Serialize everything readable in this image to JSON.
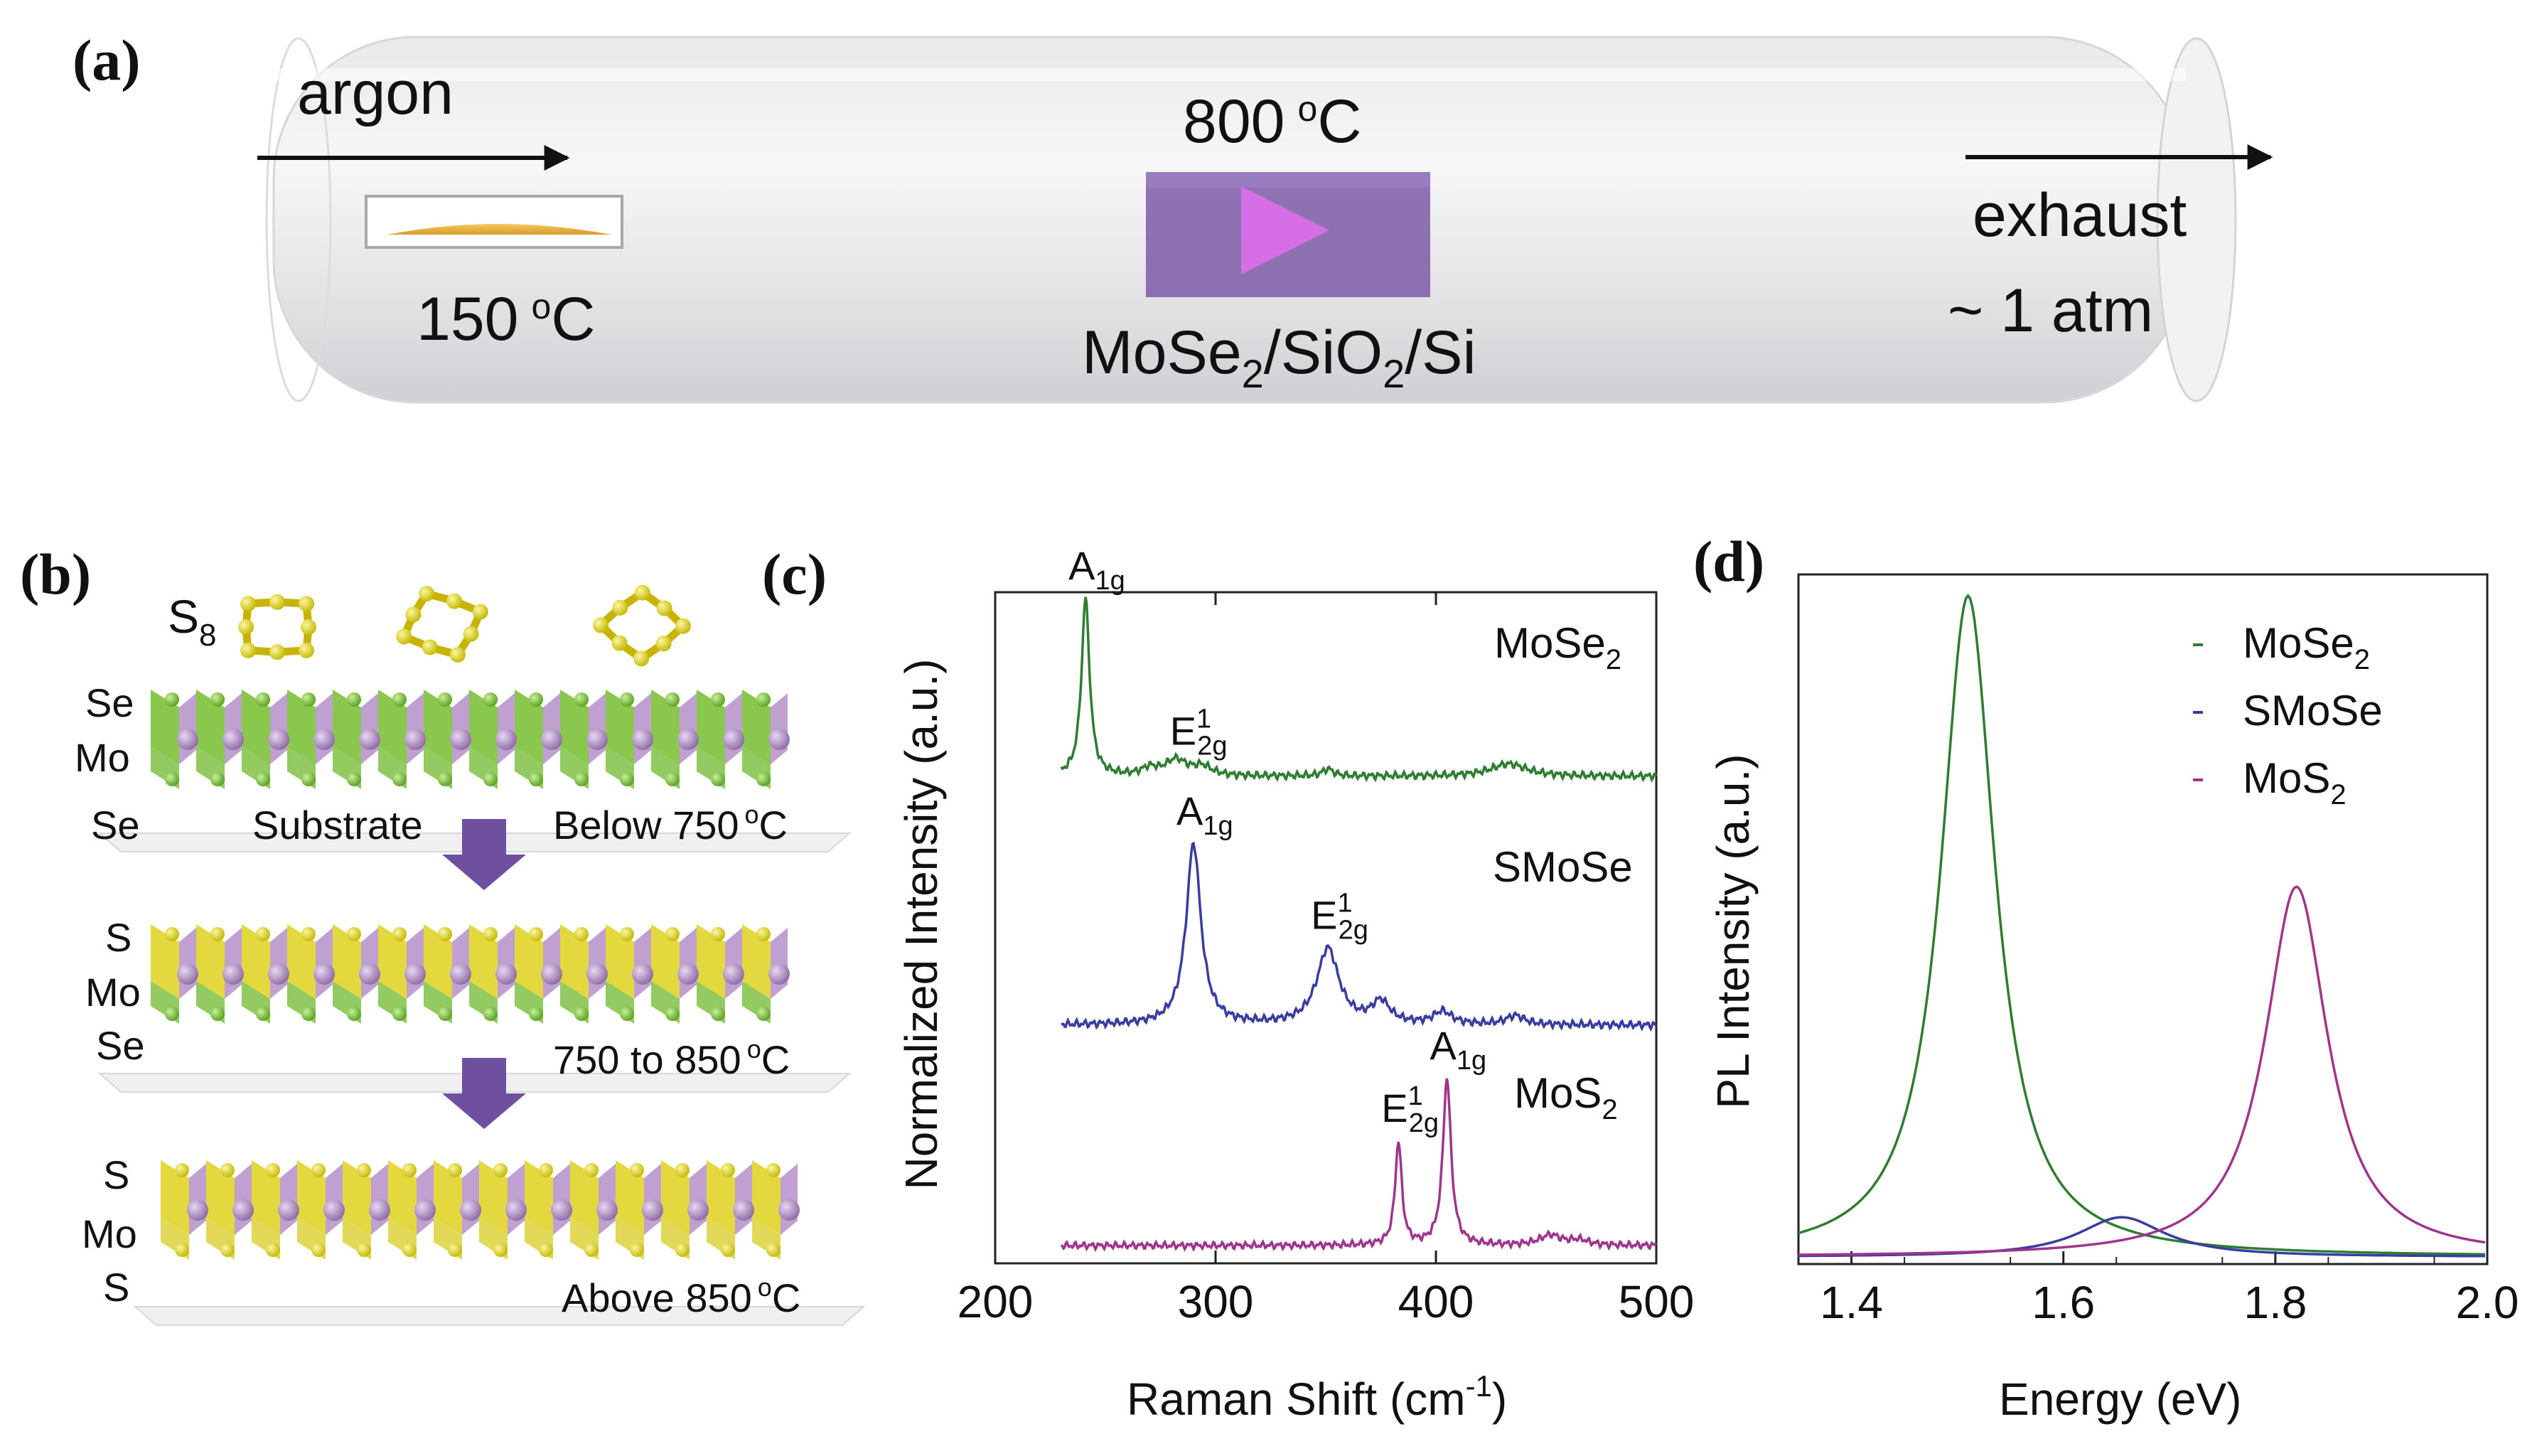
{
  "panel_a": {
    "label": "(a)",
    "argon": "argon",
    "hot_temp": "800",
    "hot_unit": "C",
    "cold_temp": "150",
    "cold_unit": "C",
    "degree": "o",
    "substrate": {
      "p1": "MoSe",
      "s1": "2",
      "p2": "/SiO",
      "s2": "2",
      "p3": "/Si"
    },
    "exhaust": "exhaust",
    "pressure": "~ 1 atm"
  },
  "panel_b": {
    "label": "(b)",
    "s8": {
      "base": "S",
      "sub": "8"
    },
    "layers": [
      {
        "top": "Se",
        "mid": "Mo",
        "bot": "Se",
        "temp": "Below 750",
        "unit": "C",
        "sub_label": "Substrate"
      },
      {
        "top": "S",
        "mid": "Mo",
        "bot": "Se",
        "temp": "750 to  850",
        "unit": "C"
      },
      {
        "top": "S",
        "mid": "Mo",
        "bot": "S",
        "temp": "Above 850",
        "unit": "C"
      }
    ],
    "degree": "o"
  },
  "panel_c_label": "(c)",
  "panel_d_label": "(d)",
  "colors": {
    "mose2": "#2f7d32",
    "smose": "#3a3da0",
    "mos2": "#a0368c",
    "purple": "#8a5fb0",
    "gold": "#e5b040"
  },
  "chart_data": [
    {
      "type": "line",
      "title": "",
      "xlabel": "Raman Shift (cm",
      "xlabel_sup": "-1",
      "xlabel_close": ")",
      "ylabel": "Normalized Intensity (a.u.)",
      "xlim": [
        200,
        500
      ],
      "xticks": [
        200,
        300,
        400,
        500
      ],
      "series": [
        {
          "name": "MoSe",
          "name_sub": "2",
          "peaks": [
            [
              241,
              1.0,
              2.2
            ],
            [
              282,
              0.09,
              6
            ],
            [
              294,
              0.05,
              5
            ],
            [
              270,
              0.04,
              4
            ],
            [
              351,
              0.04,
              3
            ],
            [
              433,
              0.07,
              10
            ]
          ],
          "labels": [
            {
              "base": "A",
              "sub": "1g",
              "x": 241
            },
            {
              "base": "E",
              "sup": "1",
              "sub": "2g",
              "x": 287
            }
          ]
        },
        {
          "name": "SMoSe",
          "peaks": [
            [
              290,
              1.0,
              4
            ],
            [
              351,
              0.42,
              6
            ],
            [
              375,
              0.12,
              5
            ],
            [
              403,
              0.07,
              5
            ],
            [
              436,
              0.05,
              5
            ]
          ],
          "labels": [
            {
              "base": "A",
              "sub": "1g",
              "x": 290
            },
            {
              "base": "E",
              "sup": "1",
              "sub": "2g",
              "x": 351
            }
          ]
        },
        {
          "name": "MoS",
          "name_sub": "2",
          "peaks": [
            [
              383,
              0.62,
              1.8
            ],
            [
              405,
              1.0,
              2.2
            ],
            [
              452,
              0.06,
              6
            ],
            [
              465,
              0.03,
              5
            ]
          ],
          "labels": [
            {
              "base": "E",
              "sup": "1",
              "sub": "2g",
              "x": 383
            },
            {
              "base": "A",
              "sub": "1g",
              "x": 405
            }
          ]
        }
      ]
    },
    {
      "type": "line",
      "title": "",
      "xlabel": "Energy (eV)",
      "ylabel": "PL Intensity (a.u.)",
      "xlim": [
        1.35,
        2.0
      ],
      "xticks": [
        1.4,
        1.6,
        1.8,
        2.0
      ],
      "legend": "top-right",
      "series": [
        {
          "name": "MoSe",
          "name_sub": "2",
          "center": 1.51,
          "width": 0.031,
          "amplitude": 1.0
        },
        {
          "name": "SMoSe",
          "center": 1.655,
          "width": 0.05,
          "amplitude": 0.06
        },
        {
          "name": "MoS",
          "name_sub": "2",
          "center": 1.82,
          "width": 0.036,
          "amplitude": 0.56
        }
      ]
    }
  ]
}
